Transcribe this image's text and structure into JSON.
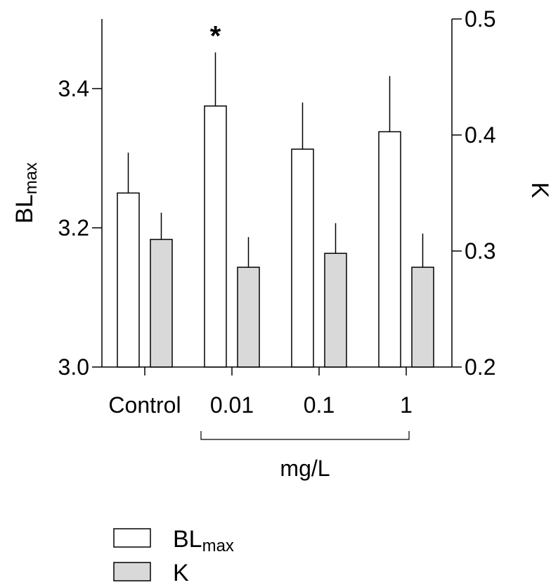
{
  "chart_data": {
    "type": "bar",
    "categories": [
      "Control",
      "0.01",
      "0.1",
      "1"
    ],
    "group_label": "mg/L",
    "group_categories": [
      "0.01",
      "0.1",
      "1"
    ],
    "left_axis": {
      "label_main": "BL",
      "label_sub": "max",
      "range": [
        3.0,
        3.5
      ],
      "ticks": [
        3.0,
        3.2,
        3.4
      ],
      "tick_labels": [
        "3.0",
        "3.2",
        "3.4"
      ]
    },
    "right_axis": {
      "label": "K",
      "range": [
        0.2,
        0.5
      ],
      "ticks": [
        0.2,
        0.3,
        0.4,
        0.5
      ],
      "tick_labels": [
        "0.2",
        "0.3",
        "0.4",
        "0.5"
      ]
    },
    "series": [
      {
        "name_main": "BL",
        "name_sub": "max",
        "axis": "left",
        "color": "#ffffff",
        "values": [
          3.25,
          3.375,
          3.313,
          3.338
        ],
        "errors": [
          0.058,
          0.077,
          0.067,
          0.08
        ]
      },
      {
        "name_main": "K",
        "name_sub": "",
        "axis": "right",
        "color": "#d9d9d9",
        "values": [
          0.31,
          0.286,
          0.298,
          0.286
        ],
        "errors": [
          0.023,
          0.026,
          0.026,
          0.029
        ]
      }
    ],
    "annotations": [
      {
        "text": "*",
        "category": "0.01",
        "series": 0
      }
    ],
    "legend": {
      "position": "bottom-center"
    },
    "grid": false
  }
}
